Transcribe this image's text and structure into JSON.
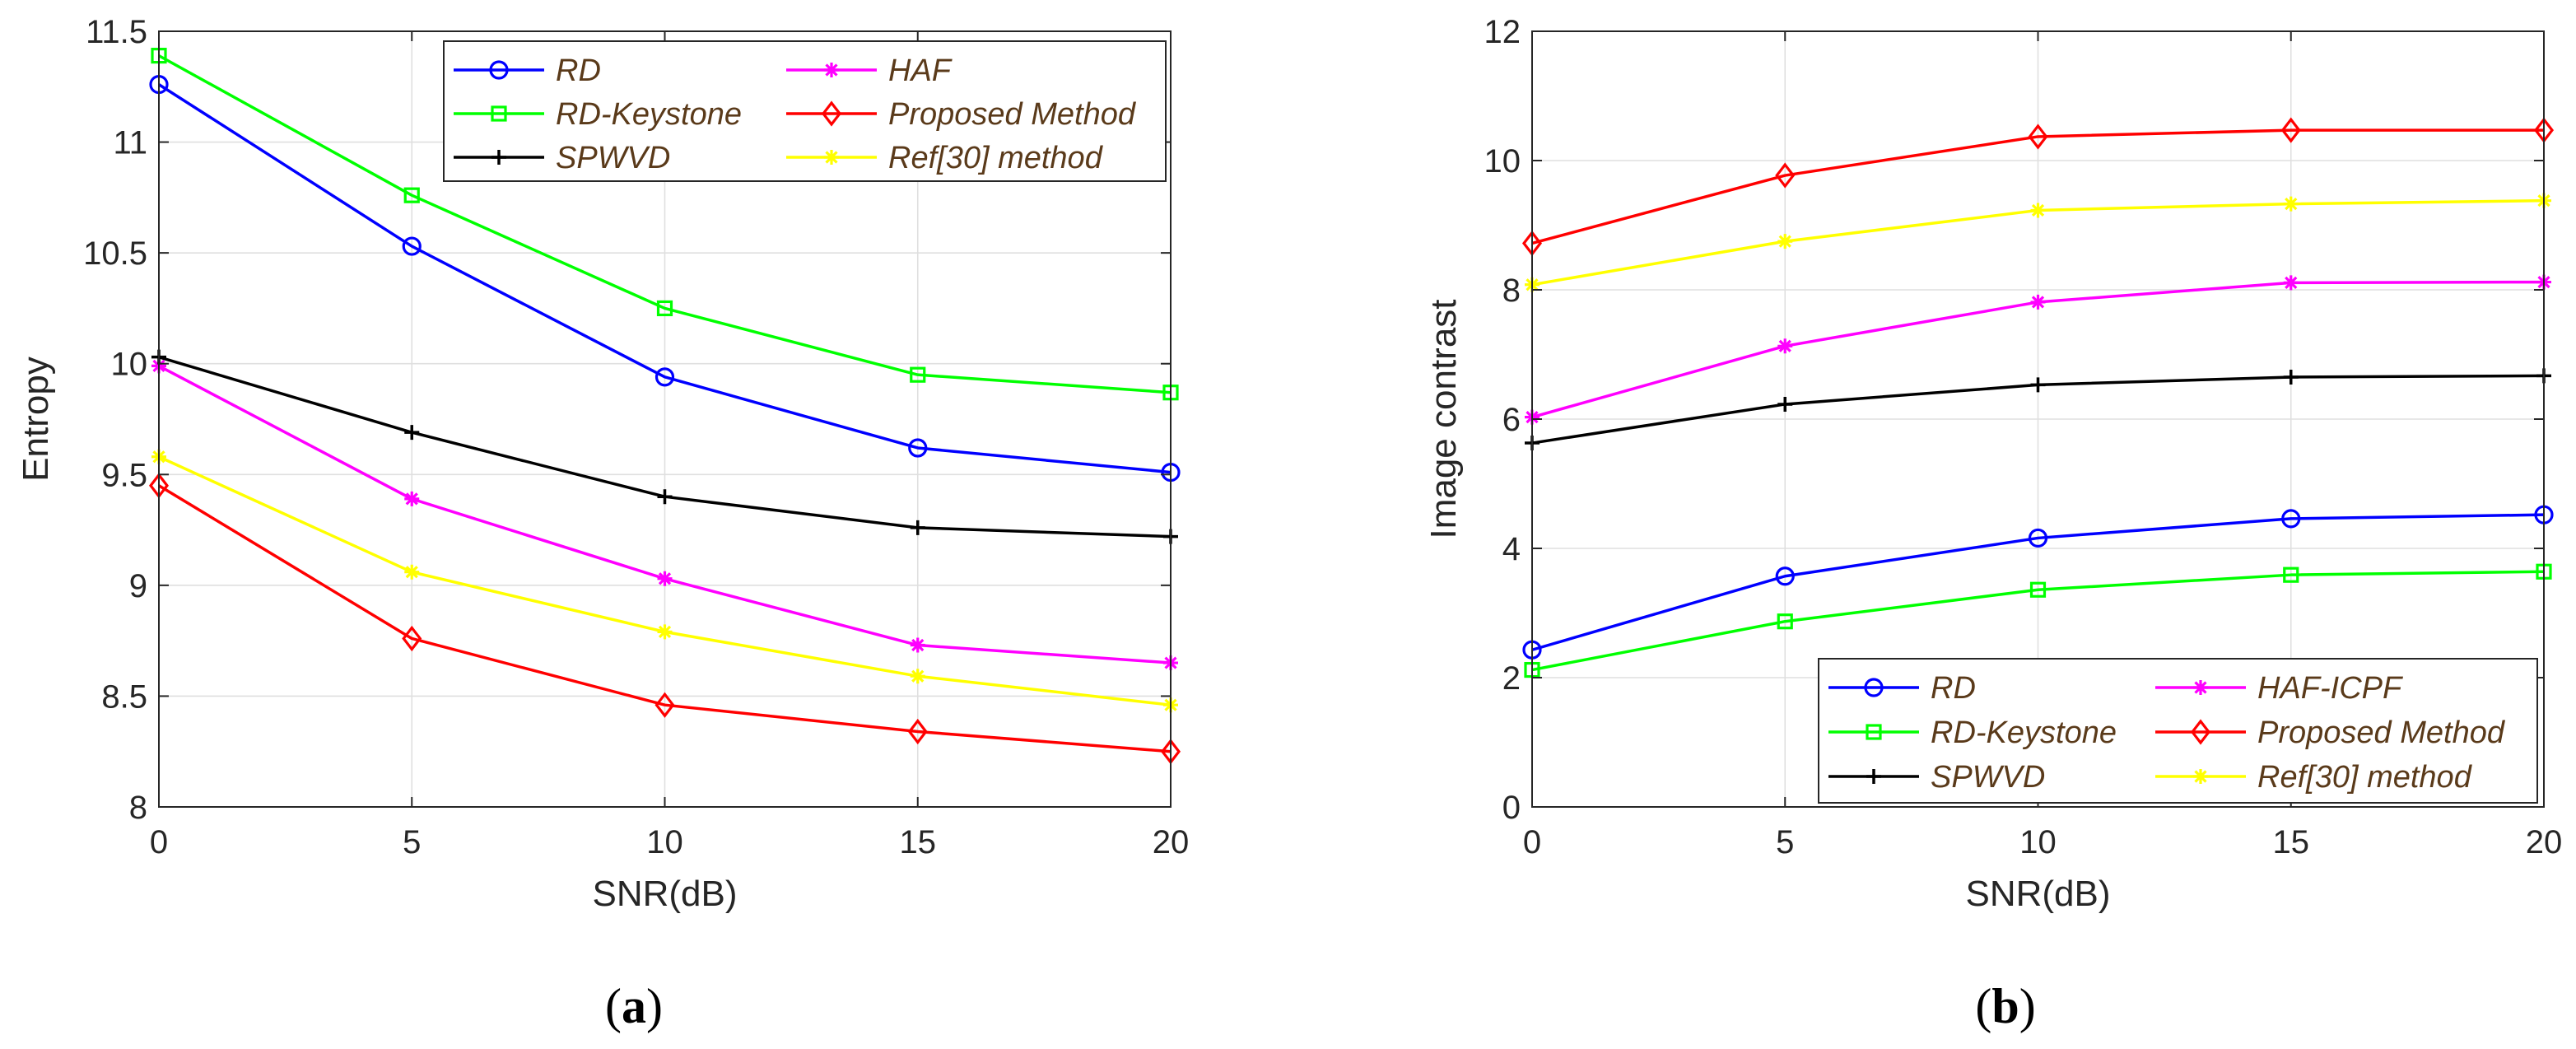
{
  "chart_data": [
    {
      "type": "line",
      "panel_label": {
        "open": "(",
        "letter": "a",
        "close": ")"
      },
      "xlabel": "SNR(dB)",
      "ylabel": "Entropy",
      "xlim": [
        0,
        20
      ],
      "ylim": [
        8,
        11.5
      ],
      "xticks": [
        0,
        5,
        10,
        15,
        20
      ],
      "xtick_labels": [
        "0",
        "5",
        "10",
        "15",
        "20"
      ],
      "yticks": [
        8,
        8.5,
        9,
        9.5,
        10,
        10.5,
        11,
        11.5
      ],
      "ytick_labels": [
        "8",
        "8.5",
        "9",
        "9.5",
        "10",
        "10.5",
        "11",
        "11.5"
      ],
      "grid": true,
      "legend_position": "top-right",
      "x": [
        0,
        5,
        10,
        15,
        20
      ],
      "series": [
        {
          "name": "RD",
          "color": "#0000ff",
          "marker": "circle",
          "values": [
            11.26,
            10.53,
            9.94,
            9.62,
            9.51
          ]
        },
        {
          "name": "HAF",
          "color": "#ff00ff",
          "marker": "asterisk",
          "values": [
            9.99,
            9.39,
            9.03,
            8.73,
            8.65
          ]
        },
        {
          "name": "RD-Keystone",
          "color": "#00ff00",
          "marker": "square",
          "values": [
            11.39,
            10.76,
            10.25,
            9.95,
            9.87
          ]
        },
        {
          "name": "Proposed Method",
          "color": "#ff0000",
          "marker": "diamond",
          "values": [
            9.45,
            8.76,
            8.46,
            8.34,
            8.25
          ]
        },
        {
          "name": "SPWVD",
          "color": "#000000",
          "marker": "plus",
          "values": [
            10.03,
            9.69,
            9.4,
            9.26,
            9.22
          ]
        },
        {
          "name": "Ref[30] method",
          "color": "#ffff00",
          "marker": "asterisk",
          "values": [
            9.58,
            9.06,
            8.79,
            8.59,
            8.46
          ]
        }
      ]
    },
    {
      "type": "line",
      "panel_label": {
        "open": "(",
        "letter": "b",
        "close": ")"
      },
      "xlabel": "SNR(dB)",
      "ylabel": "Image contrast",
      "xlim": [
        0,
        20
      ],
      "ylim": [
        0,
        12
      ],
      "xticks": [
        0,
        5,
        10,
        15,
        20
      ],
      "xtick_labels": [
        "0",
        "5",
        "10",
        "15",
        "20"
      ],
      "yticks": [
        0,
        2,
        4,
        6,
        8,
        10,
        12
      ],
      "ytick_labels": [
        "0",
        "2",
        "4",
        "6",
        "8",
        "10",
        "12"
      ],
      "grid": true,
      "legend_position": "bottom-right",
      "x": [
        0,
        5,
        10,
        15,
        20
      ],
      "series": [
        {
          "name": "RD",
          "color": "#0000ff",
          "marker": "circle",
          "values": [
            2.43,
            3.57,
            4.16,
            4.46,
            4.52
          ]
        },
        {
          "name": "HAF-ICPF",
          "color": "#ff00ff",
          "marker": "asterisk",
          "values": [
            6.03,
            7.13,
            7.81,
            8.11,
            8.12
          ]
        },
        {
          "name": "RD-Keystone",
          "color": "#00ff00",
          "marker": "square",
          "values": [
            2.12,
            2.87,
            3.36,
            3.59,
            3.64
          ]
        },
        {
          "name": "Proposed Method",
          "color": "#ff0000",
          "marker": "diamond",
          "values": [
            8.72,
            9.77,
            10.37,
            10.47,
            10.47
          ]
        },
        {
          "name": "SPWVD",
          "color": "#000000",
          "marker": "plus",
          "values": [
            5.63,
            6.23,
            6.53,
            6.65,
            6.67
          ]
        },
        {
          "name": "Ref[30] method",
          "color": "#ffff00",
          "marker": "asterisk",
          "values": [
            8.08,
            8.75,
            9.23,
            9.33,
            9.38
          ]
        }
      ]
    }
  ]
}
